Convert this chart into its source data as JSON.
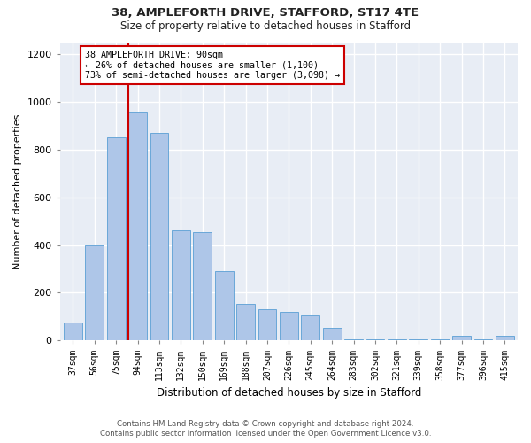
{
  "title1": "38, AMPLEFORTH DRIVE, STAFFORD, ST17 4TE",
  "title2": "Size of property relative to detached houses in Stafford",
  "xlabel": "Distribution of detached houses by size in Stafford",
  "ylabel": "Number of detached properties",
  "categories": [
    "37sqm",
    "56sqm",
    "75sqm",
    "94sqm",
    "113sqm",
    "132sqm",
    "150sqm",
    "169sqm",
    "188sqm",
    "207sqm",
    "226sqm",
    "245sqm",
    "264sqm",
    "283sqm",
    "302sqm",
    "321sqm",
    "339sqm",
    "358sqm",
    "377sqm",
    "396sqm",
    "415sqm"
  ],
  "values": [
    75,
    400,
    850,
    960,
    870,
    460,
    455,
    290,
    155,
    130,
    120,
    105,
    55,
    5,
    5,
    5,
    5,
    5,
    20,
    5,
    20
  ],
  "bar_color": "#aec6e8",
  "bar_edgecolor": "#5a9fd4",
  "vline_x_index": 3,
  "vline_color": "#cc0000",
  "annotation_text_line1": "38 AMPLEFORTH DRIVE: 90sqm",
  "annotation_text_line2": "← 26% of detached houses are smaller (1,100)",
  "annotation_text_line3": "73% of semi-detached houses are larger (3,098) →",
  "annotation_box_color": "#cc0000",
  "annotation_bg": "#ffffff",
  "ylim": [
    0,
    1250
  ],
  "yticks": [
    0,
    200,
    400,
    600,
    800,
    1000,
    1200
  ],
  "background_color": "#e8edf5",
  "grid_color": "#ffffff",
  "footer_line1": "Contains HM Land Registry data © Crown copyright and database right 2024.",
  "footer_line2": "Contains public sector information licensed under the Open Government Licence v3.0."
}
